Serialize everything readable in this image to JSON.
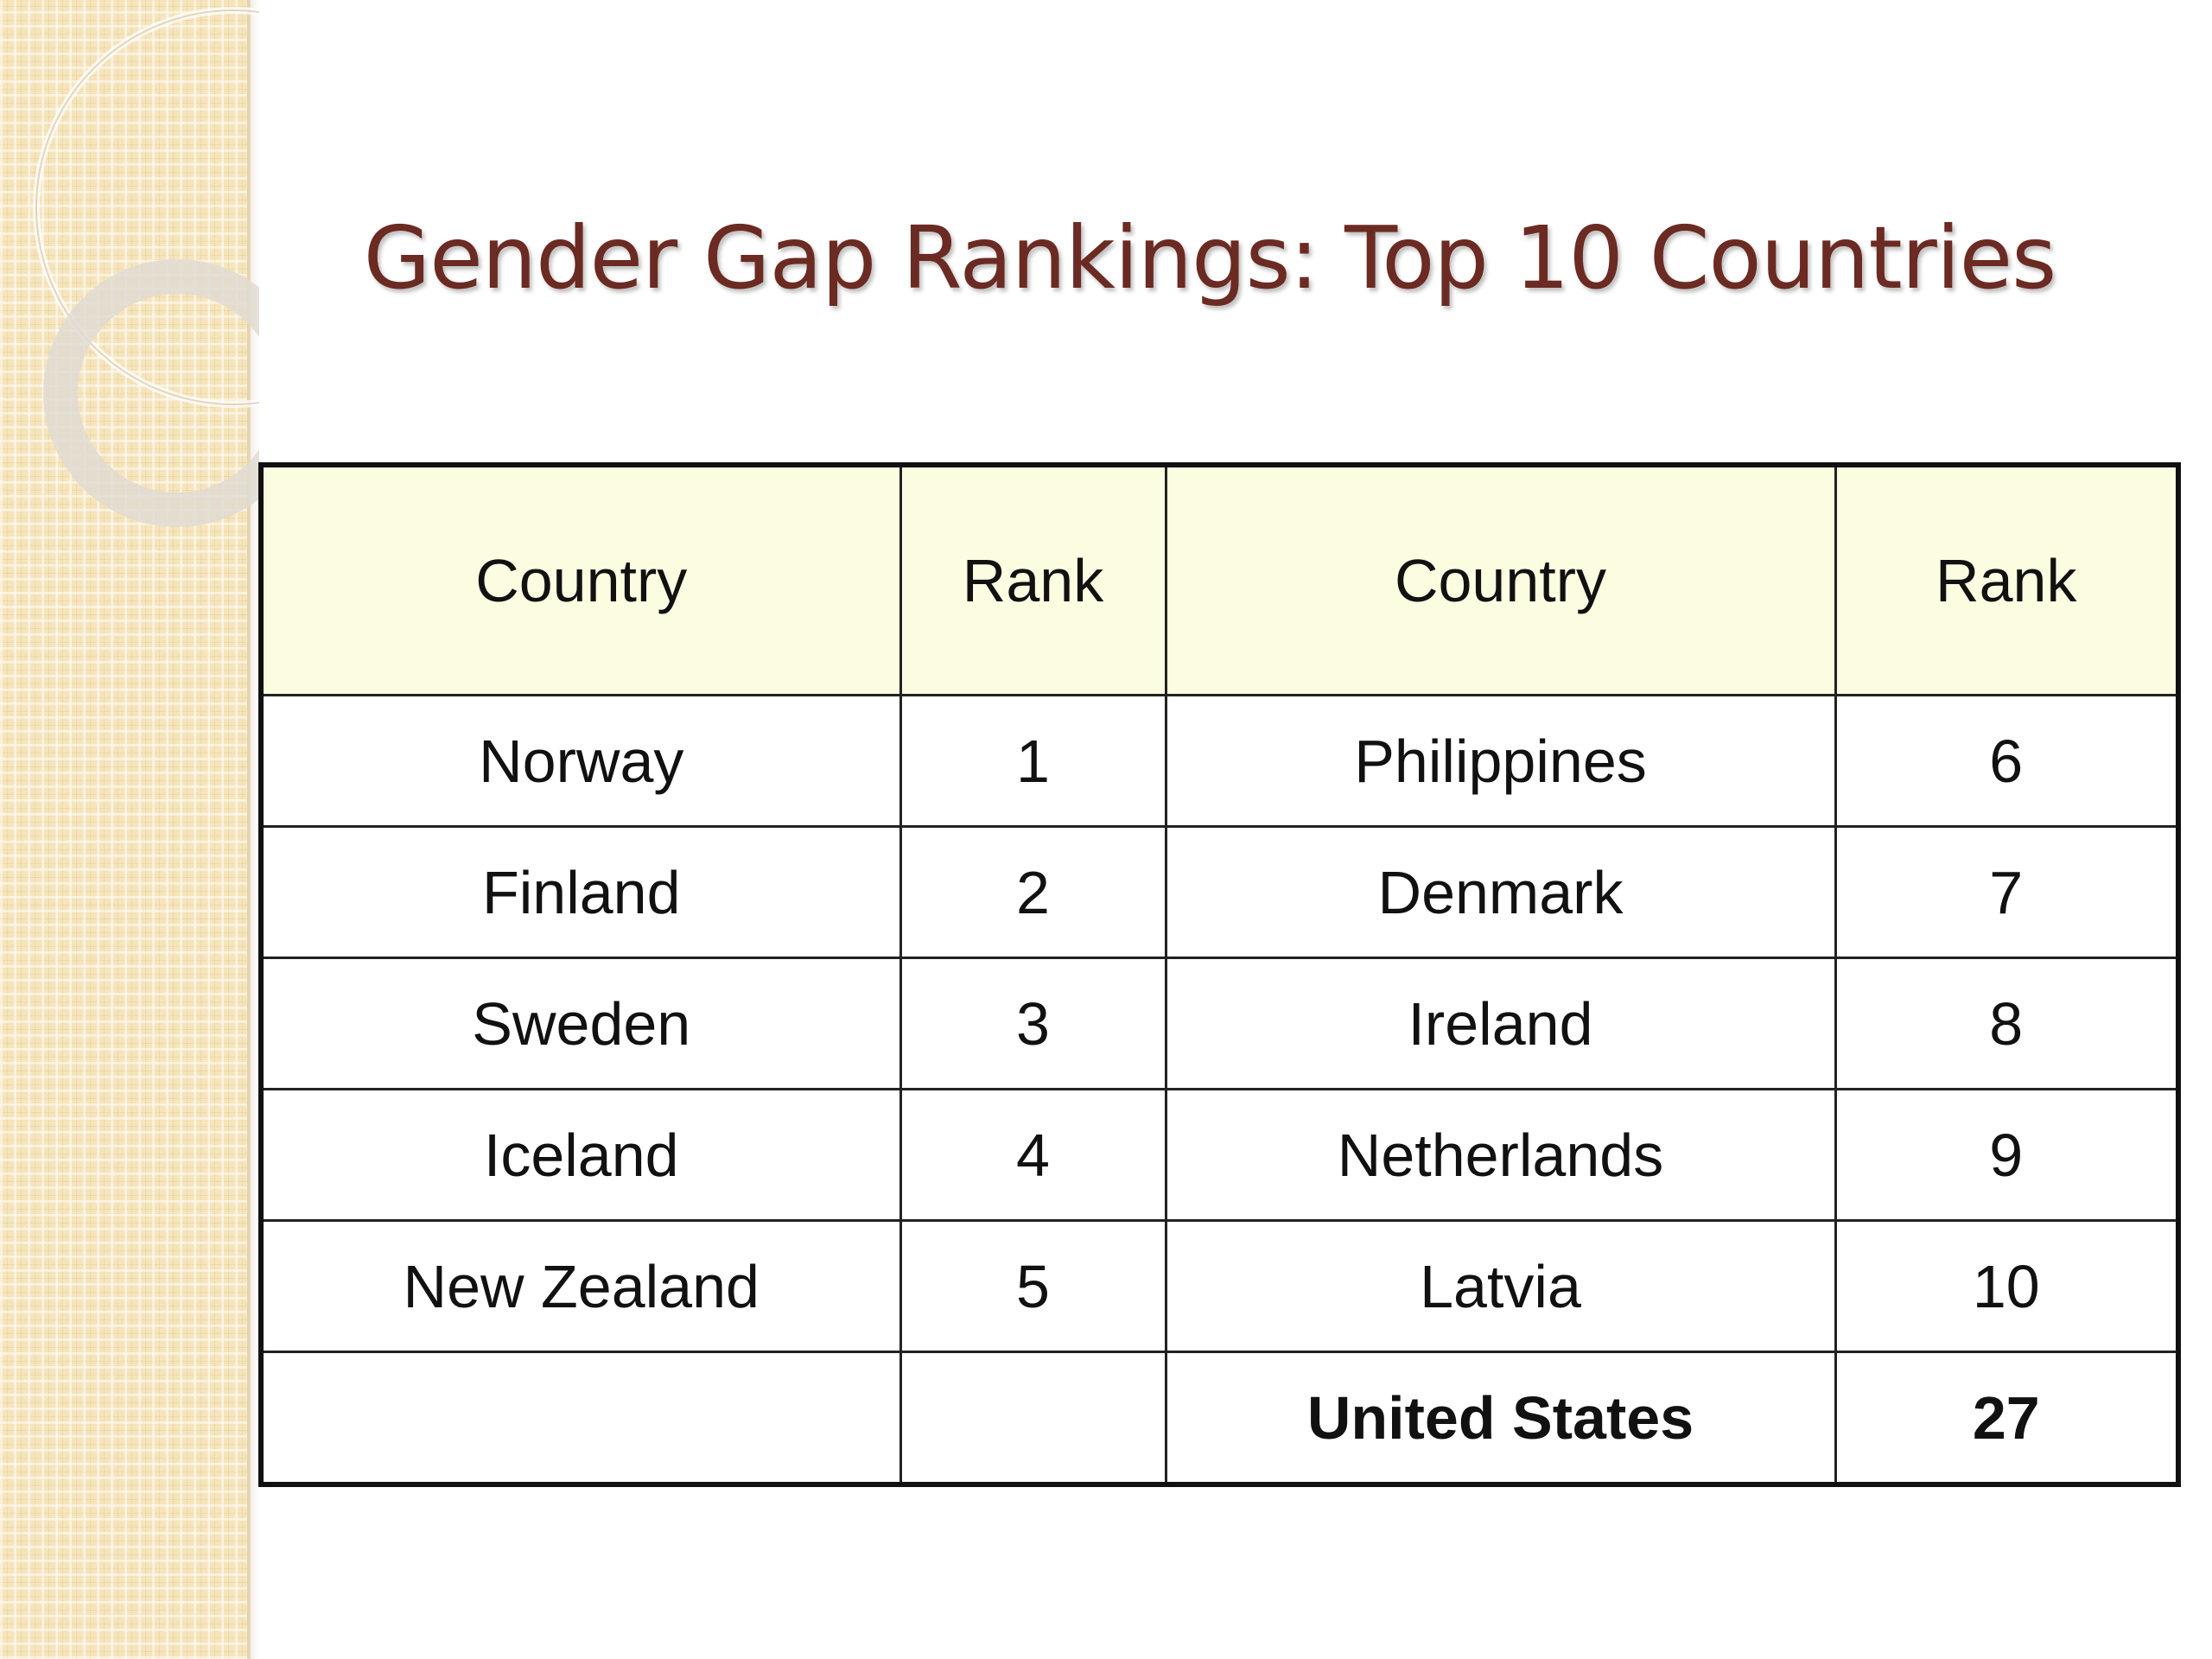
{
  "slide": {
    "title": "Gender Gap Rankings: Top 10 Countries"
  },
  "table": {
    "headers": [
      "Country",
      "Rank",
      "Country",
      "Rank"
    ],
    "rows": [
      {
        "country_left": "Norway",
        "rank_left": "1",
        "country_right": "Philippines",
        "rank_right": "6"
      },
      {
        "country_left": "Finland",
        "rank_left": "2",
        "country_right": "Denmark",
        "rank_right": "7"
      },
      {
        "country_left": "Sweden",
        "rank_left": "3",
        "country_right": "Ireland",
        "rank_right": "8"
      },
      {
        "country_left": "Iceland",
        "rank_left": "4",
        "country_right": "Netherlands",
        "rank_right": "9"
      },
      {
        "country_left": "New Zealand",
        "rank_left": "5",
        "country_right": "Latvia",
        "rank_right": "10"
      },
      {
        "country_left": "",
        "rank_left": "",
        "country_right": "United States",
        "rank_right": "27"
      }
    ]
  },
  "colors": {
    "title": "#6b2a22",
    "header_background": "#fcfce1",
    "side_strip": "#f6e4bb"
  }
}
